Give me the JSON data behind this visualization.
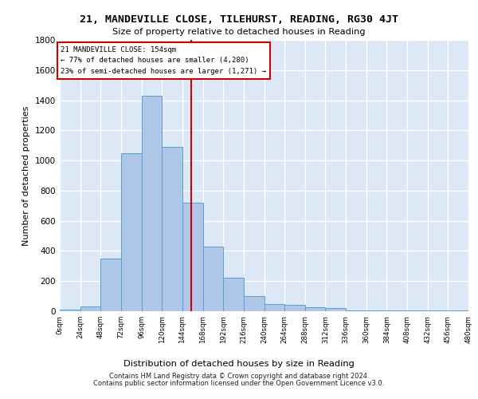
{
  "title1": "21, MANDEVILLE CLOSE, TILEHURST, READING, RG30 4JT",
  "title2": "Size of property relative to detached houses in Reading",
  "xlabel": "Distribution of detached houses by size in Reading",
  "ylabel": "Number of detached properties",
  "footer1": "Contains HM Land Registry data © Crown copyright and database right 2024.",
  "footer2": "Contains public sector information licensed under the Open Government Licence v3.0.",
  "annotation_line1": "21 MANDEVILLE CLOSE: 154sqm",
  "annotation_line2": "← 77% of detached houses are smaller (4,280)",
  "annotation_line3": "23% of semi-detached houses are larger (1,271) →",
  "property_size": 154,
  "bar_values": [
    10,
    30,
    350,
    1050,
    1430,
    1090,
    720,
    430,
    220,
    100,
    50,
    40,
    25,
    20,
    5,
    5,
    5,
    5,
    5,
    5
  ],
  "bin_edges": [
    0,
    24,
    48,
    72,
    96,
    120,
    144,
    168,
    192,
    216,
    240,
    264,
    288,
    312,
    336,
    360,
    384,
    408,
    432,
    456,
    480
  ],
  "bin_labels": [
    "0sqm",
    "24sqm",
    "48sqm",
    "72sqm",
    "96sqm",
    "120sqm",
    "144sqm",
    "168sqm",
    "192sqm",
    "216sqm",
    "240sqm",
    "264sqm",
    "288sqm",
    "312sqm",
    "336sqm",
    "360sqm",
    "384sqm",
    "408sqm",
    "432sqm",
    "456sqm",
    "480sqm"
  ],
  "bar_color": "#aec6e8",
  "bar_edge_color": "#5a9fd4",
  "vline_color": "#cc0000",
  "vline_x": 154,
  "box_color": "#cc0000",
  "background_color": "#dce8f5",
  "grid_color": "#ffffff",
  "ylim": [
    0,
    1800
  ],
  "yticks": [
    0,
    200,
    400,
    600,
    800,
    1000,
    1200,
    1400,
    1600,
    1800
  ]
}
